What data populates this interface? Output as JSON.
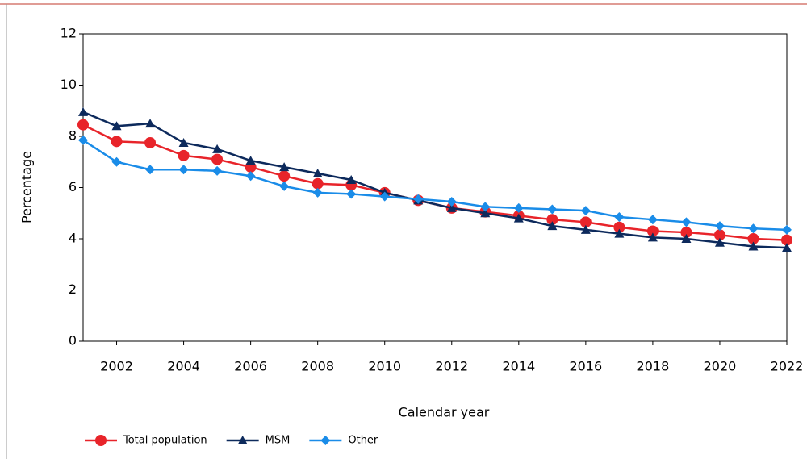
{
  "chart_data": {
    "type": "line",
    "x": [
      2001,
      2002,
      2003,
      2004,
      2005,
      2006,
      2007,
      2008,
      2009,
      2010,
      2011,
      2012,
      2013,
      2014,
      2015,
      2016,
      2017,
      2018,
      2019,
      2020,
      2021,
      2022
    ],
    "series": [
      {
        "name": "Total population",
        "color": "#e8242a",
        "marker": "circle",
        "values": [
          8.45,
          7.8,
          7.75,
          7.25,
          7.1,
          6.8,
          6.45,
          6.15,
          6.1,
          5.8,
          5.5,
          5.2,
          5.05,
          4.9,
          4.75,
          4.65,
          4.45,
          4.3,
          4.25,
          4.15,
          4.0,
          3.95
        ]
      },
      {
        "name": "MSM",
        "color": "#0d2a5c",
        "marker": "triangle",
        "values": [
          8.95,
          8.4,
          8.5,
          7.75,
          7.5,
          7.05,
          6.8,
          6.55,
          6.3,
          5.8,
          5.5,
          5.2,
          5.0,
          4.8,
          4.5,
          4.35,
          4.2,
          4.05,
          4.0,
          3.85,
          3.7,
          3.65
        ]
      },
      {
        "name": "Other",
        "color": "#1a8ce8",
        "marker": "diamond",
        "values": [
          7.85,
          7.0,
          6.7,
          6.7,
          6.65,
          6.45,
          6.05,
          5.8,
          5.75,
          5.65,
          5.55,
          5.45,
          5.25,
          5.2,
          5.15,
          5.1,
          4.85,
          4.75,
          4.65,
          4.5,
          4.4,
          4.35
        ]
      }
    ],
    "xlabel": "Calendar year",
    "ylabel": "Percentage",
    "xlim": [
      2001,
      2022
    ],
    "xticks": [
      2002,
      2004,
      2006,
      2008,
      2010,
      2012,
      2014,
      2016,
      2018,
      2020,
      2022
    ],
    "ylim": [
      0,
      12
    ],
    "yticks": [
      0,
      2,
      4,
      6,
      8,
      10,
      12
    ],
    "legend": "bottom"
  }
}
